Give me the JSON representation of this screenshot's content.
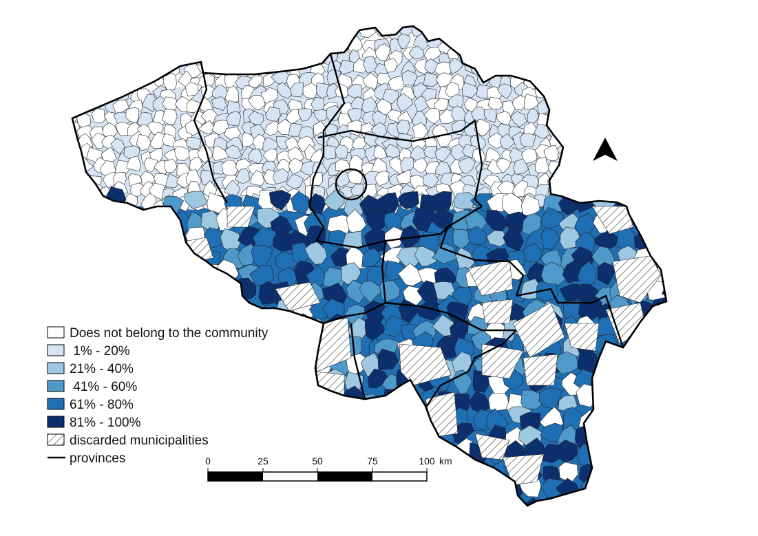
{
  "colors": {
    "outside": "#ffffff",
    "c1_20": "#d6e4f4",
    "c21_40": "#9ec7e2",
    "c41_60": "#4f9acb",
    "c61_80": "#1f6fb5",
    "c81_100": "#0d2f6e",
    "province_border": "#000000",
    "municipality_border": "#222222"
  },
  "legend": {
    "items": [
      {
        "label": "Does not belong to the community",
        "swatch": "outside"
      },
      {
        "label": " 1% - 20%",
        "swatch": "c1_20"
      },
      {
        "label": "21% - 40%",
        "swatch": "c21_40"
      },
      {
        "label": " 41% - 60%",
        "swatch": "c41_60"
      },
      {
        "label": "61% - 80%",
        "swatch": "c61_80"
      },
      {
        "label": "81% - 100%",
        "swatch": "c81_100"
      },
      {
        "label": "discarded municipalities",
        "swatch": "hatch"
      },
      {
        "label": "provinces",
        "swatch": "line"
      }
    ]
  },
  "scale_bar": {
    "ticks": [
      "0",
      "25",
      "50",
      "75",
      "100"
    ],
    "unit": "km"
  },
  "north_arrow": {
    "icon": "north-arrow-icon"
  }
}
